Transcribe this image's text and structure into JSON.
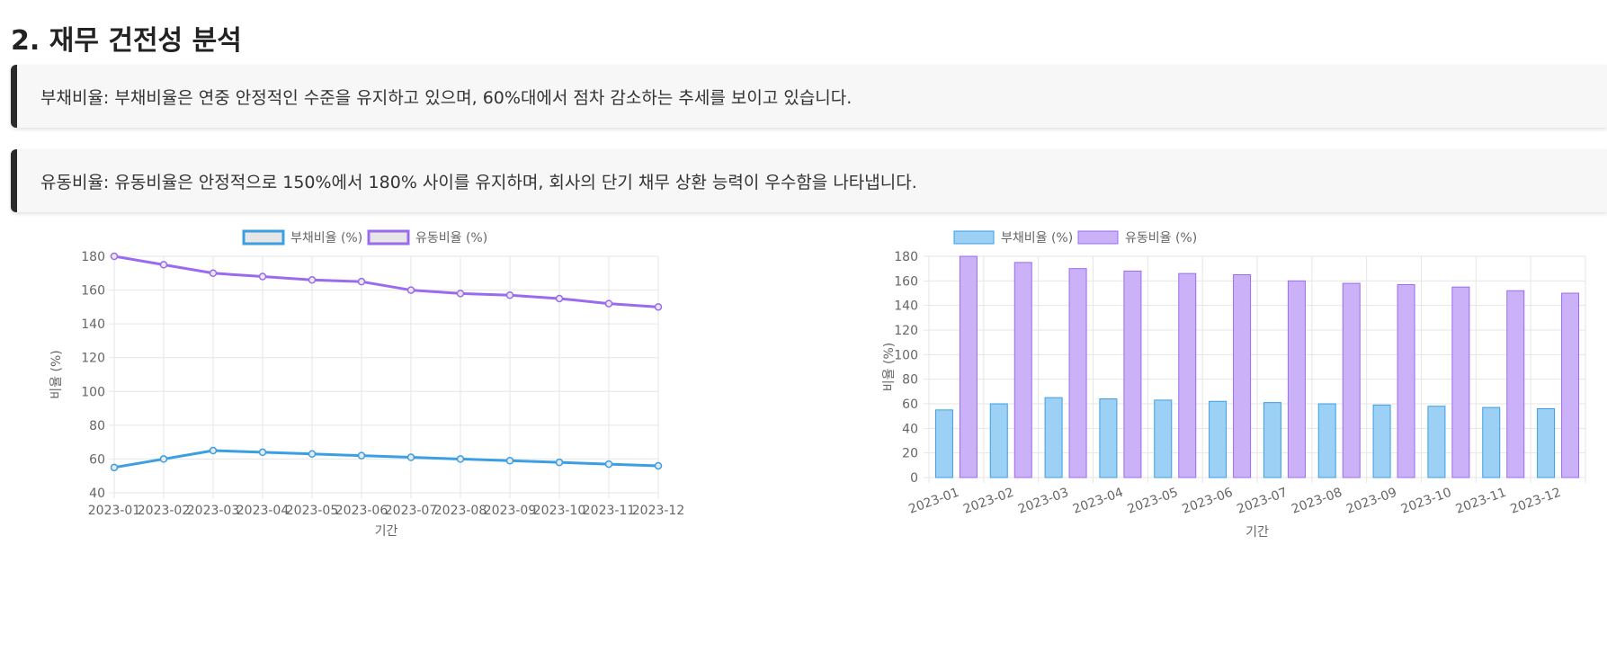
{
  "section": {
    "title": "2. 재무 건전성 분석",
    "notes": [
      "부채비율: 부채비율은 연중 안정적인 수준을 유지하고 있으며, 60%대에서 점차 감소하는 추세를 보이고 있습니다.",
      "유동비율: 유동비율은 안정적으로 150%에서 180% 사이를 유지하며, 회사의 단기 채무 상환 능력이 우수함을 나타냅니다."
    ]
  },
  "colors": {
    "debt": "#3b9fe3",
    "debt_fill": "#9dd0f5",
    "current": "#9b6bef",
    "current_fill": "#cbb2f8",
    "grid": "#e6e6e6",
    "legend_box_fill": "#e6e6e6"
  },
  "chart_data": [
    {
      "type": "line",
      "categories": [
        "2023-01",
        "2023-02",
        "2023-03",
        "2023-04",
        "2023-05",
        "2023-06",
        "2023-07",
        "2023-08",
        "2023-09",
        "2023-10",
        "2023-11",
        "2023-12"
      ],
      "series": [
        {
          "name": "부채비율 (%)",
          "values": [
            55,
            60,
            65,
            64,
            63,
            62,
            61,
            60,
            59,
            58,
            57,
            56
          ]
        },
        {
          "name": "유동비율 (%)",
          "values": [
            180,
            175,
            170,
            168,
            166,
            165,
            160,
            158,
            157,
            155,
            152,
            150
          ]
        }
      ],
      "xlabel": "기간",
      "ylabel": "비율 (%)",
      "ylim": [
        40,
        180
      ],
      "yticks": [
        40,
        60,
        80,
        100,
        120,
        140,
        160,
        180
      ],
      "grid": true,
      "legend": "top-center"
    },
    {
      "type": "bar",
      "categories": [
        "2023-01",
        "2023-02",
        "2023-03",
        "2023-04",
        "2023-05",
        "2023-06",
        "2023-07",
        "2023-08",
        "2023-09",
        "2023-10",
        "2023-11",
        "2023-12"
      ],
      "series": [
        {
          "name": "부채비율 (%)",
          "values": [
            55,
            60,
            65,
            64,
            63,
            62,
            61,
            60,
            59,
            58,
            57,
            56
          ]
        },
        {
          "name": "유동비율 (%)",
          "values": [
            180,
            175,
            170,
            168,
            166,
            165,
            160,
            158,
            157,
            155,
            152,
            150
          ]
        }
      ],
      "xlabel": "기간",
      "ylabel": "비율 (%)",
      "ylim": [
        0,
        180
      ],
      "yticks": [
        0,
        20,
        40,
        60,
        80,
        100,
        120,
        140,
        160,
        180
      ],
      "grid": true,
      "legend": "top-center"
    }
  ]
}
